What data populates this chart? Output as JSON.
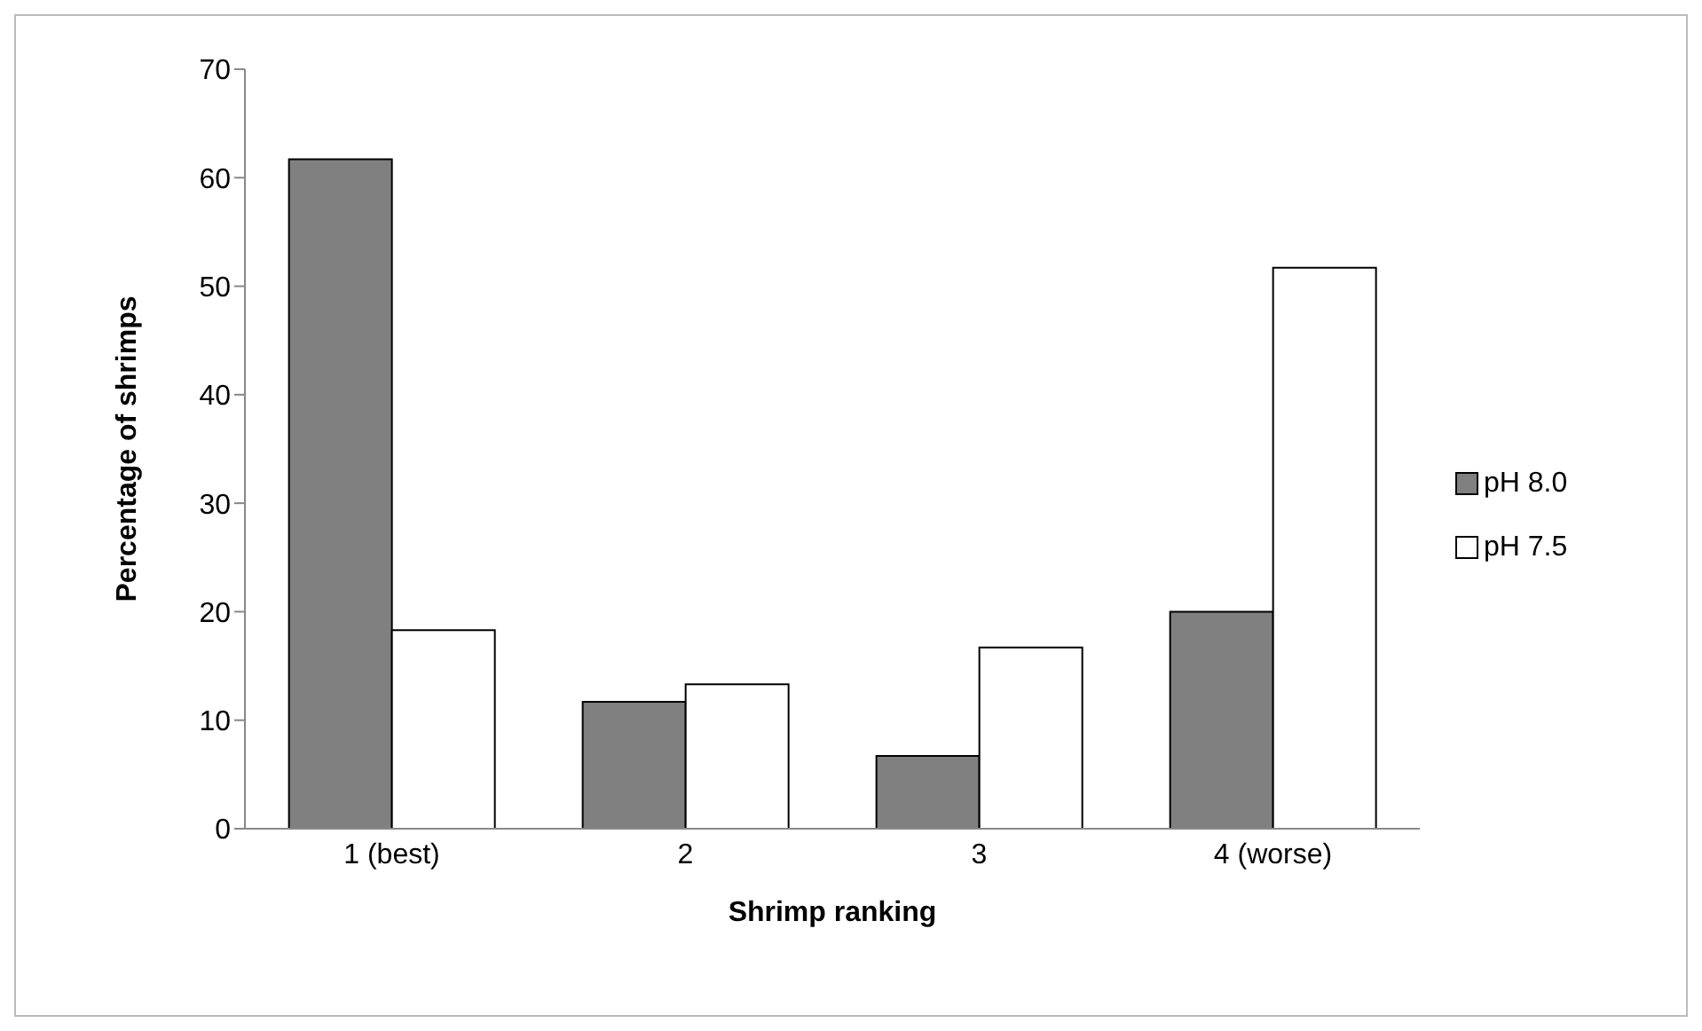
{
  "chart_data": {
    "type": "bar",
    "xlabel": "Shrimp ranking",
    "ylabel": "Percentage of shrimps",
    "categories": [
      "1 (best)",
      "2",
      "3",
      "4 (worse)"
    ],
    "series": [
      {
        "name": "pH 8.0",
        "color": "#808080",
        "values": [
          61.7,
          11.7,
          6.7,
          20.0
        ]
      },
      {
        "name": "pH 7.5",
        "color": "#ffffff",
        "values": [
          18.3,
          13.3,
          16.7,
          51.7
        ]
      }
    ],
    "ylim": [
      0,
      70
    ],
    "yticks": [
      0,
      10,
      20,
      30,
      40,
      50,
      60,
      70
    ],
    "grid": false,
    "legend": "right"
  }
}
